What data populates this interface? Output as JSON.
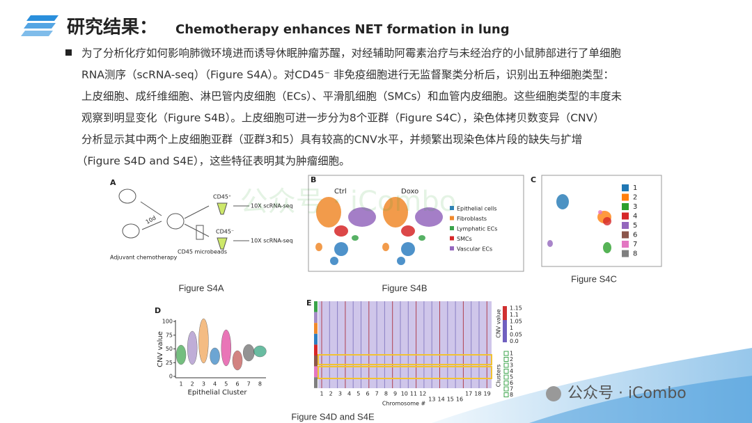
{
  "header": {
    "title": "研究结果：",
    "subtitle": "Chemotherapy enhances NET formation in lung"
  },
  "body": {
    "lines": [
      "为了分析化疗如何影响肺微环境进而诱导休眠肿瘤苏醒，对经辅助阿霉素治疗与未经治疗的小鼠肺部进行了单细胞",
      "RNA测序（scRNA-seq）（Figure S4A）。对CD45⁻ 非免疫细胞进行无监督聚类分析后，识别出五种细胞类型：",
      "上皮细胞、成纤维细胞、淋巴管内皮细胞（ECs）、平滑肌细胞（SMCs）和血管内皮细胞。这些细胞类型的丰度未",
      "观察到明显变化（Figure S4B）。上皮细胞可进一步分为8个亚群（Figure S4C），染色体拷贝数变异（CNV）",
      "分析显示其中两个上皮细胞亚群（亚群3和5）具有较高的CNV水平，并频繁出现染色体片段的缺失与扩增",
      "（Figure S4D and S4E），这些特征表明其为肿瘤细胞。"
    ]
  },
  "figures": {
    "a": {
      "label": "A",
      "pos": "CD45⁺",
      "neg": "CD45⁻",
      "seq_pos": "10X scRNA-seq",
      "seq_neg": "10X scRNA-seq",
      "days": "10d",
      "treatment": "Adjuvant chemotherapy",
      "beads": "CD45 microbeads",
      "caption": "Figure S4A"
    },
    "b": {
      "label": "B",
      "panels": [
        "Ctrl",
        "Doxo"
      ],
      "legend": [
        "Epithelial cells",
        "Fibroblasts",
        "Lymphatic ECs",
        "SMCs",
        "Vascular ECs"
      ],
      "colors": [
        "#2f7fc1",
        "#f0892c",
        "#3aa34a",
        "#d62728",
        "#9467bd"
      ],
      "caption": "Figure S4B"
    },
    "c": {
      "label": "C",
      "legend": [
        1,
        2,
        3,
        4,
        5,
        6,
        7,
        8
      ],
      "colors": [
        "#1f77b4",
        "#ff7f0e",
        "#2ca02c",
        "#d62728",
        "#9467bd",
        "#8c564b",
        "#e377c2",
        "#7f7f7f"
      ],
      "caption": "Figure S4C"
    },
    "d": {
      "label": "D",
      "ylabel": "CNV value",
      "xlabel": "Epithelial Cluster",
      "yticks": [
        0,
        25,
        50,
        75,
        100
      ],
      "categories": [
        1,
        2,
        3,
        4,
        5,
        6,
        7,
        8
      ]
    },
    "e": {
      "label": "E",
      "colorbar_label": "CNV value",
      "colorbar_ticks": [
        "1.15",
        "1.1",
        "1.05",
        "1",
        "0.05",
        "0.0"
      ],
      "clusters_label": "Clusters",
      "clusters": [
        1,
        2,
        3,
        4,
        5,
        6,
        7,
        8
      ],
      "chromosomes": [
        1,
        2,
        3,
        4,
        5,
        6,
        7,
        8,
        9,
        10,
        11,
        12,
        13,
        14,
        15,
        16,
        17,
        18,
        19
      ],
      "xlabel": "Chromosome #"
    },
    "de_caption": "Figure S4D and S4E"
  },
  "watermark_center": "公众号 · iCombo",
  "watermark": "公众号 · iCombo"
}
